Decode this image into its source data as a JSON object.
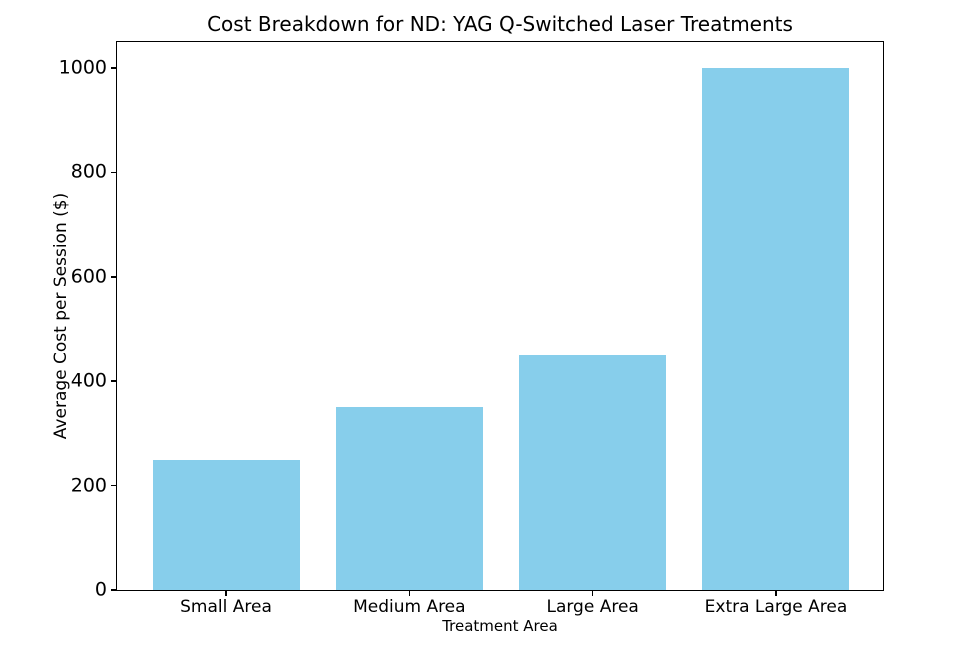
{
  "figure": {
    "background": "#ffffff",
    "text_color": "#000000",
    "spine_color": "#000000"
  },
  "chart_data": {
    "type": "bar",
    "title": "Cost Breakdown for ND: YAG Q-Switched Laser Treatments",
    "xlabel": "Treatment Area",
    "ylabel": "Average Cost per Session ($)",
    "categories": [
      "Small Area",
      "Medium Area",
      "Large Area",
      "Extra Large Area"
    ],
    "values": [
      250,
      350,
      450,
      1000
    ],
    "bar_color": "#87CEEB",
    "ylim": [
      0,
      1050
    ],
    "yticks": [
      0,
      200,
      400,
      600,
      800,
      1000
    ],
    "grid": false,
    "legend": "none"
  }
}
